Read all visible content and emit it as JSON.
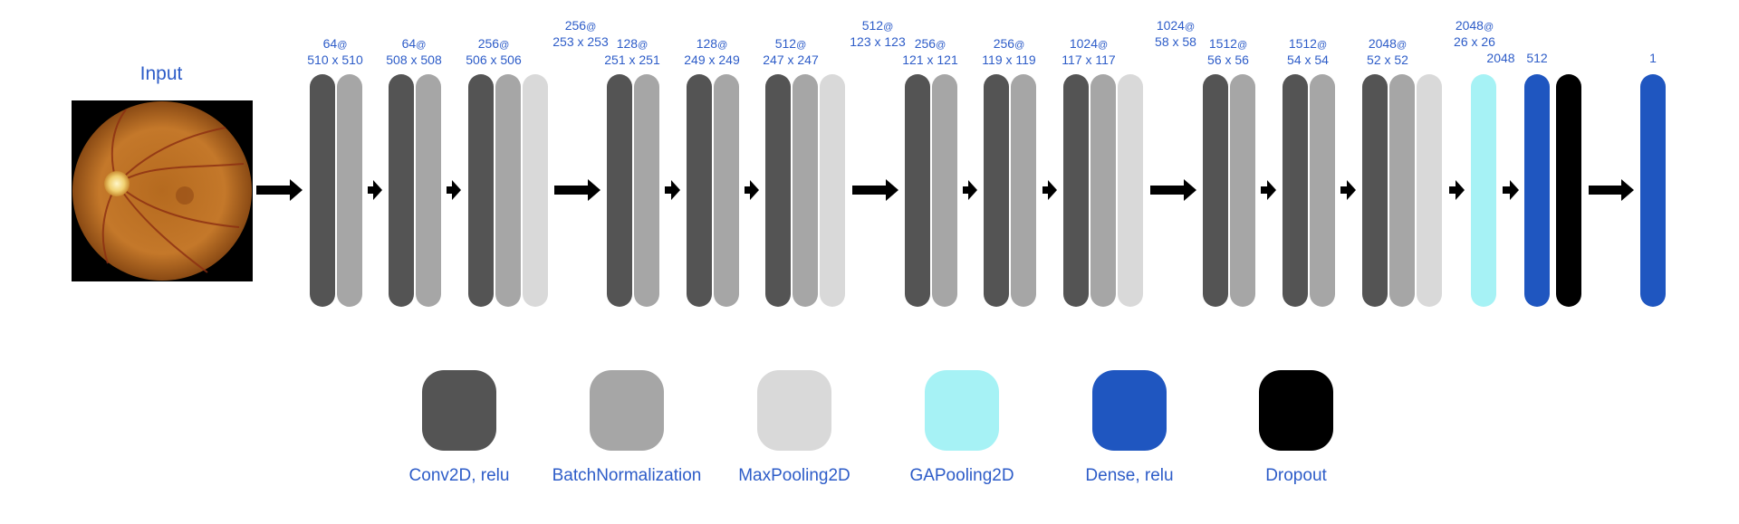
{
  "input": {
    "title": "Input"
  },
  "colors": {
    "conv": "#545454",
    "batchnorm": "#a6a6a6",
    "maxpool": "#d9d9d9",
    "gapool": "#a6f2f5",
    "dense": "#1f56c0",
    "dropout": "#000000",
    "text": "#2d5cc8"
  },
  "blocks": [
    {
      "filters": "64",
      "size": "510 x 510",
      "layers": [
        "conv",
        "batchnorm"
      ]
    },
    {
      "filters": "64",
      "size": "508 x 508",
      "layers": [
        "conv",
        "batchnorm"
      ]
    },
    {
      "filters": "256",
      "size": "506 x 506",
      "layers": [
        "conv",
        "batchnorm",
        "maxpool"
      ],
      "pool_filters": "256",
      "pool_size": "253 x 253"
    },
    {
      "filters": "128",
      "size": "251 x 251",
      "layers": [
        "conv",
        "batchnorm"
      ]
    },
    {
      "filters": "128",
      "size": "249 x 249",
      "layers": [
        "conv",
        "batchnorm"
      ]
    },
    {
      "filters": "512",
      "size": "247 x 247",
      "layers": [
        "conv",
        "batchnorm",
        "maxpool"
      ],
      "pool_filters": "512",
      "pool_size": "123 x 123"
    },
    {
      "filters": "256",
      "size": "121 x 121",
      "layers": [
        "conv",
        "batchnorm"
      ]
    },
    {
      "filters": "256",
      "size": "119 x 119",
      "layers": [
        "conv",
        "batchnorm"
      ]
    },
    {
      "filters": "1024",
      "size": "117 x 117",
      "layers": [
        "conv",
        "batchnorm",
        "maxpool"
      ],
      "pool_filters": "1024",
      "pool_size": "58 x 58"
    },
    {
      "filters": "1512",
      "size": "56 x 56",
      "layers": [
        "conv",
        "batchnorm"
      ]
    },
    {
      "filters": "1512",
      "size": "54 x 54",
      "layers": [
        "conv",
        "batchnorm"
      ]
    },
    {
      "filters": "2048",
      "size": "52 x 52",
      "layers": [
        "conv",
        "batchnorm",
        "maxpool"
      ],
      "pool_filters": "2048",
      "pool_size": "26 x 26"
    }
  ],
  "head": [
    {
      "label": "2048",
      "layers": [
        "gapool"
      ]
    },
    {
      "label": "512",
      "layers": [
        "dense",
        "dropout"
      ]
    },
    {
      "label": "1",
      "layers": [
        "dense"
      ]
    }
  ],
  "legend": [
    {
      "key": "conv",
      "label": "Conv2D, relu"
    },
    {
      "key": "batchnorm",
      "label": "BatchNormalization"
    },
    {
      "key": "maxpool",
      "label": "MaxPooling2D"
    },
    {
      "key": "gapool",
      "label": "GAPooling2D"
    },
    {
      "key": "dense",
      "label": "Dense, relu"
    },
    {
      "key": "dropout",
      "label": "Dropout"
    }
  ]
}
